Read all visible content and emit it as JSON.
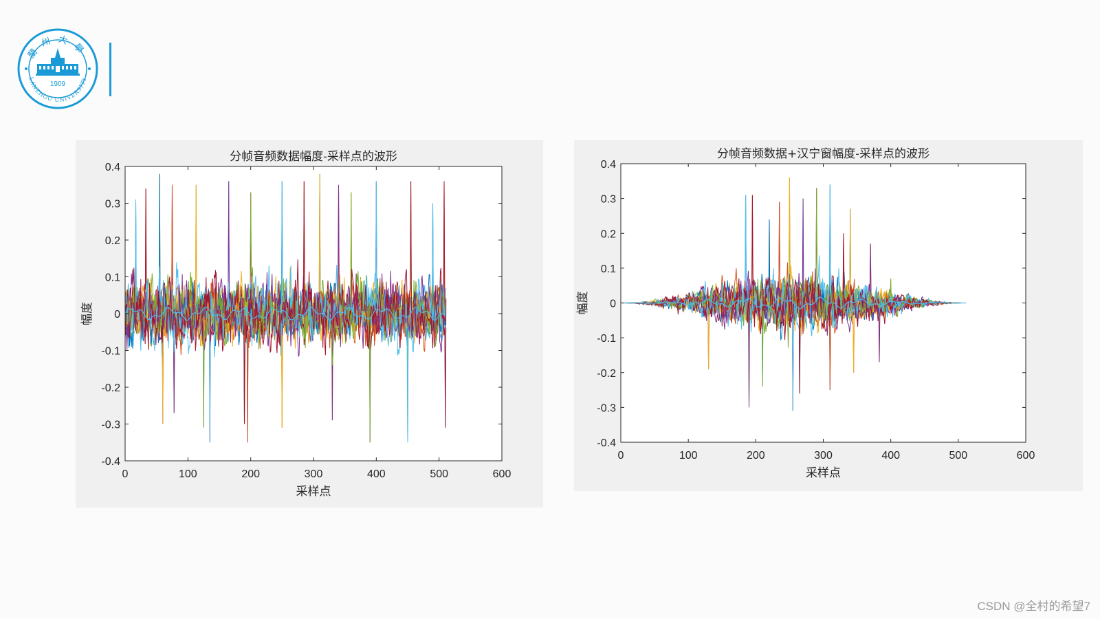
{
  "logo": {
    "name_cn": "蘭州大學",
    "name_en": "LANZHOU UNIVERSITY",
    "year": "1909",
    "color": "#1a9ad6"
  },
  "watermark": "CSDN @全村的希望7",
  "colors": [
    "#0072BD",
    "#D95319",
    "#EDB120",
    "#7E2F8E",
    "#77AC30",
    "#4DBEEE",
    "#A2142F"
  ],
  "chart_data": [
    {
      "type": "line",
      "title": "分帧音频数据幅度-采样点的波形",
      "xlabel": "采样点",
      "ylabel": "幅度",
      "xlim": [
        0,
        600
      ],
      "ylim": [
        -0.4,
        0.4
      ],
      "xticks": [
        "0",
        "100",
        "200",
        "300",
        "400",
        "500",
        "600"
      ],
      "yticks": [
        "0.4",
        "0.3",
        "0.2",
        "0.1",
        "0",
        "-0.1",
        "-0.2",
        "-0.3",
        "-0.4"
      ],
      "samples_per_frame": 512,
      "window": "none",
      "grid": false,
      "peaks": [
        {
          "x": 17,
          "y": 0.31
        },
        {
          "x": 33,
          "y": 0.34
        },
        {
          "x": 55,
          "y": 0.38
        },
        {
          "x": 75,
          "y": 0.35
        },
        {
          "x": 113,
          "y": 0.35
        },
        {
          "x": 165,
          "y": 0.36
        },
        {
          "x": 200,
          "y": 0.33
        },
        {
          "x": 250,
          "y": 0.36
        },
        {
          "x": 285,
          "y": 0.36
        },
        {
          "x": 310,
          "y": 0.38
        },
        {
          "x": 340,
          "y": 0.35
        },
        {
          "x": 360,
          "y": 0.33
        },
        {
          "x": 400,
          "y": 0.36
        },
        {
          "x": 455,
          "y": 0.36
        },
        {
          "x": 490,
          "y": 0.3
        },
        {
          "x": 508,
          "y": 0.36
        }
      ],
      "troughs": [
        {
          "x": 60,
          "y": -0.3
        },
        {
          "x": 78,
          "y": -0.27
        },
        {
          "x": 125,
          "y": -0.31
        },
        {
          "x": 135,
          "y": -0.35
        },
        {
          "x": 190,
          "y": -0.3
        },
        {
          "x": 195,
          "y": -0.35
        },
        {
          "x": 250,
          "y": -0.31
        },
        {
          "x": 330,
          "y": -0.29
        },
        {
          "x": 390,
          "y": -0.35
        },
        {
          "x": 450,
          "y": -0.35
        },
        {
          "x": 510,
          "y": -0.31
        }
      ]
    },
    {
      "type": "line",
      "title": "分帧音频数据+汉宁窗幅度-采样点的波形",
      "xlabel": "采样点",
      "ylabel": "幅度",
      "xlim": [
        0,
        600
      ],
      "ylim": [
        -0.4,
        0.4
      ],
      "xticks": [
        "0",
        "100",
        "200",
        "300",
        "400",
        "500",
        "600"
      ],
      "yticks": [
        "0.4",
        "0.3",
        "0.2",
        "0.1",
        "0",
        "-0.1",
        "-0.2",
        "-0.3",
        "-0.4"
      ],
      "samples_per_frame": 512,
      "window": "hanning",
      "grid": false,
      "peaks": [
        {
          "x": 185,
          "y": 0.31
        },
        {
          "x": 195,
          "y": 0.31
        },
        {
          "x": 220,
          "y": 0.24
        },
        {
          "x": 235,
          "y": 0.29
        },
        {
          "x": 250,
          "y": 0.36
        },
        {
          "x": 270,
          "y": 0.3
        },
        {
          "x": 290,
          "y": 0.33
        },
        {
          "x": 310,
          "y": 0.34
        },
        {
          "x": 330,
          "y": 0.2
        },
        {
          "x": 340,
          "y": 0.27
        },
        {
          "x": 370,
          "y": 0.17
        },
        {
          "x": 400,
          "y": 0.07
        }
      ],
      "troughs": [
        {
          "x": 130,
          "y": -0.19
        },
        {
          "x": 190,
          "y": -0.3
        },
        {
          "x": 210,
          "y": -0.24
        },
        {
          "x": 255,
          "y": -0.31
        },
        {
          "x": 265,
          "y": -0.26
        },
        {
          "x": 310,
          "y": -0.25
        },
        {
          "x": 345,
          "y": -0.2
        },
        {
          "x": 383,
          "y": -0.17
        }
      ]
    }
  ]
}
